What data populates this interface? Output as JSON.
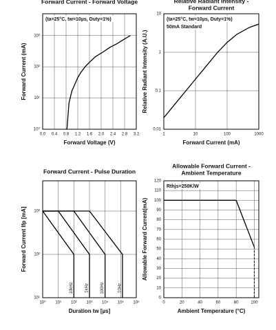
{
  "chart_data": [
    {
      "type": "line",
      "title": [
        "Forward Current - Forward Voltage"
      ],
      "annotations": [
        "(ta=25°C, tw=10µs, Duty=1%)"
      ],
      "xlabel": "Forward Voltage (V)",
      "ylabel": "Forward Current (mA)",
      "yscale": "log",
      "grid": true,
      "xlim": [
        0,
        3.2
      ],
      "ylim": [
        1,
        5000
      ],
      "xticks": [
        {
          "value": 0,
          "label": "0.0"
        },
        0.4,
        0.8,
        1.2,
        1.6,
        {
          "value": 2,
          "label": "2.0"
        },
        2.4,
        2.8,
        3.2
      ],
      "yticks": [
        {
          "value": 1,
          "label": "10⁰"
        },
        {
          "value": 10,
          "label": "10¹"
        },
        {
          "value": 100,
          "label": "10²"
        },
        {
          "value": 1000,
          "label": "10³"
        }
      ],
      "series": [
        {
          "color": "#000000",
          "x": [
            0.83,
            0.9,
            1.0,
            1.08,
            1.2,
            1.3,
            1.45,
            1.6,
            1.8,
            2.07,
            2.3,
            2.54,
            2.8,
            3.0
          ],
          "values": [
            1,
            7,
            17,
            25,
            45,
            65,
            100,
            140,
            210,
            300,
            420,
            550,
            780,
            1000
          ]
        }
      ]
    },
    {
      "type": "line",
      "title": [
        "Relative Radiant Intensity -",
        "Forward Current"
      ],
      "annotations": [
        "(ta=25°C, tw=10µs, Duty=1%)",
        "50mA Standard"
      ],
      "xlabel": "Forward Current (mA)",
      "ylabel": "Relative Radiant Intensity (A.U.)",
      "xscale": "log",
      "yscale": "log",
      "grid": true,
      "xlim": [
        1,
        1000
      ],
      "ylim": [
        0.01,
        10
      ],
      "xticks": [
        1,
        10,
        100,
        1000
      ],
      "yticks": [
        0.01,
        0.1,
        1,
        10
      ],
      "series": [
        {
          "color": "#000000",
          "x": [
            1,
            2,
            5,
            10,
            20,
            50,
            100,
            200,
            500,
            1000
          ],
          "values": [
            0.02,
            0.04,
            0.1,
            0.2,
            0.4,
            1,
            1.8,
            2.9,
            4.4,
            5.4
          ]
        }
      ]
    },
    {
      "type": "line",
      "title": [
        "Forward Current - Pulse Duration"
      ],
      "annotations": [],
      "xlabel": "Duration tw [µs]",
      "ylabel": "Forward Current Ifp [mA]",
      "xscale": "log",
      "yscale": "log",
      "grid": true,
      "xlim": [
        1,
        1000000
      ],
      "ylim": [
        10,
        5000
      ],
      "xticks": [
        {
          "value": 1,
          "label": "10⁰"
        },
        {
          "value": 10,
          "label": "10¹"
        },
        {
          "value": 100,
          "label": "10²"
        },
        {
          "value": 1000,
          "label": "10³"
        },
        {
          "value": 10000,
          "label": "10⁴"
        },
        {
          "value": 100000,
          "label": "10⁵"
        },
        {
          "value": 1000000,
          "label": "10⁶"
        }
      ],
      "yticks": [
        {
          "value": 10,
          "label": "10¹"
        },
        {
          "value": 100,
          "label": "10²"
        },
        {
          "value": 1000,
          "label": "10³"
        }
      ],
      "series": [
        {
          "name": "10kHz",
          "color": "#000000",
          "x": [
            1,
            100,
            100
          ],
          "values": [
            1000,
            100,
            10
          ]
        },
        {
          "name": "1kHz",
          "color": "#000000",
          "x": [
            1,
            10,
            1000,
            1000
          ],
          "values": [
            1000,
            1000,
            100,
            10
          ]
        },
        {
          "name": "100Hz",
          "color": "#000000",
          "x": [
            1,
            100,
            10000,
            10000
          ],
          "values": [
            1000,
            1000,
            100,
            10
          ]
        },
        {
          "name": "10Hz",
          "color": "#000000",
          "x": [
            1,
            1000,
            130000,
            130000
          ],
          "values": [
            1000,
            1000,
            100,
            10
          ]
        }
      ]
    },
    {
      "type": "line",
      "title": [
        "Allowable Forward Current -",
        "Ambient Temperature"
      ],
      "annotations": [
        "Rthjs=250K/W"
      ],
      "xlabel": "Ambient Temperature (°C)",
      "ylabel": "Allowable Forward Current(mA)",
      "grid": true,
      "xlim": [
        0,
        105
      ],
      "ylim": [
        0,
        120
      ],
      "xticks": [
        0,
        20,
        40,
        60,
        80,
        100
      ],
      "yticks": [
        0,
        10,
        20,
        30,
        40,
        50,
        60,
        70,
        80,
        90,
        100,
        110,
        120
      ],
      "series": [
        {
          "color": "#000000",
          "x": [
            0,
            80,
            100
          ],
          "values": [
            100,
            100,
            52
          ]
        }
      ]
    }
  ]
}
